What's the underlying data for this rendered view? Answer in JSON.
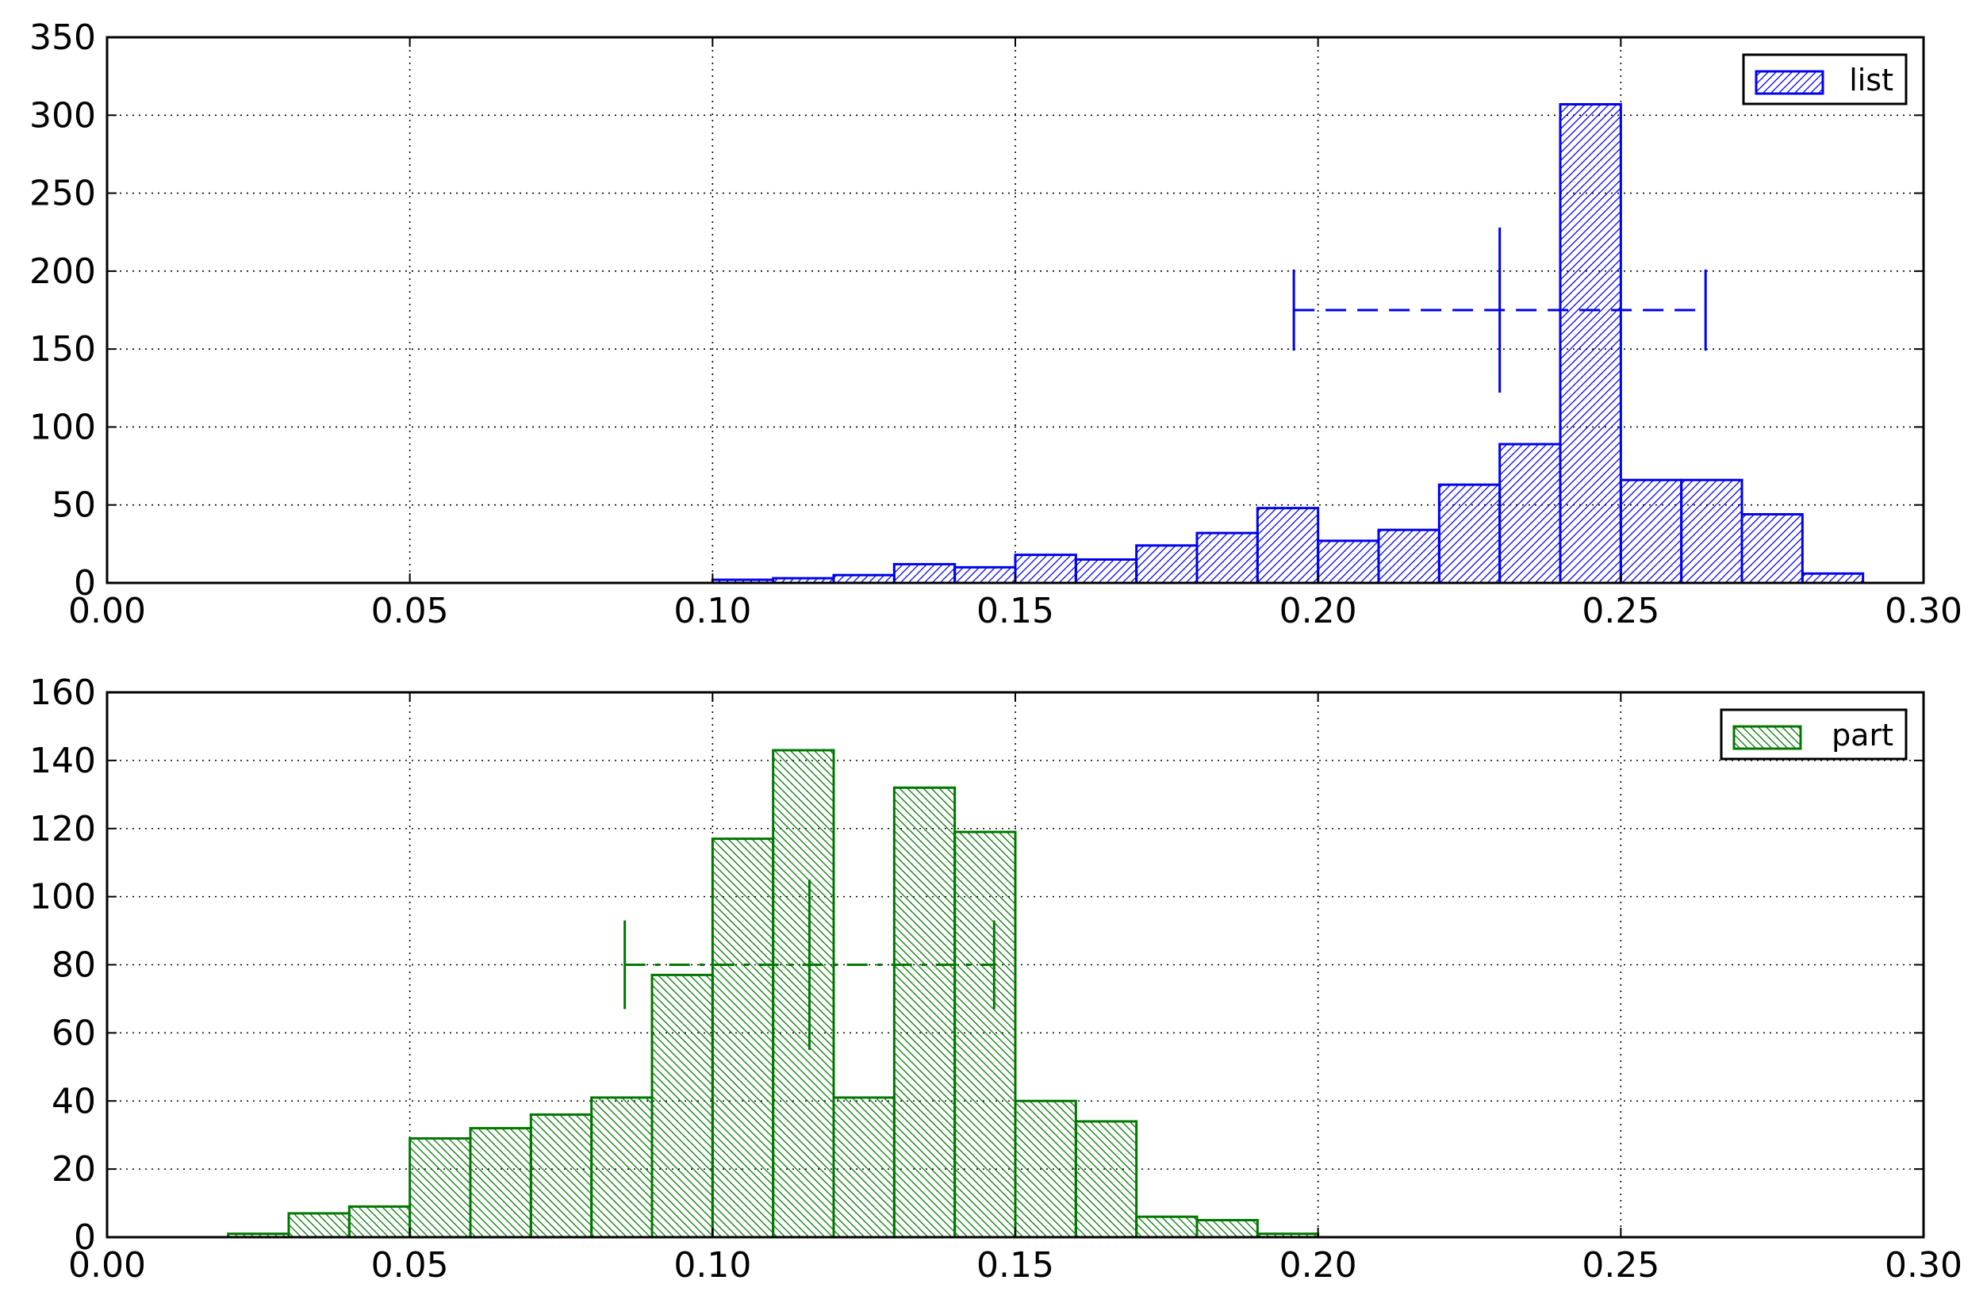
{
  "chart_data": [
    {
      "type": "bar",
      "title": "",
      "xlabel": "",
      "ylabel": "",
      "xlim": [
        0.0,
        0.3
      ],
      "ylim": [
        0,
        350
      ],
      "grid": true,
      "grid_style": "dotted",
      "legend_position": "top-right",
      "x_ticks": [
        "0.00",
        "0.05",
        "0.10",
        "0.15",
        "0.20",
        "0.25",
        "0.30"
      ],
      "y_ticks": [
        "0",
        "50",
        "100",
        "150",
        "200",
        "250",
        "300",
        "350"
      ],
      "series": [
        {
          "name": "list",
          "color": "#0000ee",
          "hatch": "forward-diagonal",
          "bin_edges": [
            0.1,
            0.11,
            0.12,
            0.13,
            0.14,
            0.15,
            0.16,
            0.17,
            0.18,
            0.19,
            0.2,
            0.21,
            0.22,
            0.23,
            0.24,
            0.25,
            0.26,
            0.27,
            0.28,
            0.29
          ],
          "values": [
            2,
            3,
            5,
            12,
            10,
            18,
            15,
            24,
            32,
            48,
            27,
            34,
            63,
            89,
            307,
            66,
            66,
            44,
            6
          ]
        }
      ],
      "errorbar": {
        "y": 175,
        "x_left": 0.196,
        "x_center": 0.23,
        "x_right": 0.264,
        "center_marker_range": [
          122,
          228
        ],
        "end_marker_range": [
          149,
          201
        ],
        "style": "dashed",
        "color": "#0000ee"
      }
    },
    {
      "type": "bar",
      "title": "",
      "xlabel": "",
      "ylabel": "",
      "xlim": [
        0.0,
        0.3
      ],
      "ylim": [
        0,
        160
      ],
      "grid": true,
      "grid_style": "dotted",
      "legend_position": "top-right",
      "x_ticks": [
        "0.00",
        "0.05",
        "0.10",
        "0.15",
        "0.20",
        "0.25",
        "0.30"
      ],
      "y_ticks": [
        "0",
        "20",
        "40",
        "60",
        "80",
        "100",
        "120",
        "140",
        "160"
      ],
      "series": [
        {
          "name": "part",
          "color": "#007700",
          "hatch": "back-diagonal",
          "bin_edges": [
            0.02,
            0.03,
            0.04,
            0.05,
            0.06,
            0.07,
            0.08,
            0.09,
            0.1,
            0.11,
            0.12,
            0.13,
            0.14,
            0.15,
            0.16,
            0.17,
            0.18,
            0.19,
            0.2
          ],
          "values": [
            1,
            7,
            9,
            29,
            32,
            36,
            41,
            77,
            117,
            143,
            41,
            132,
            119,
            40,
            34,
            6,
            5,
            1
          ]
        }
      ],
      "errorbar": {
        "y": 80,
        "x_left": 0.0855,
        "x_center": 0.116,
        "x_right": 0.1465,
        "center_marker_range": [
          55,
          105
        ],
        "end_marker_range": [
          67,
          93
        ],
        "style": "dash-dot",
        "color": "#007700"
      }
    }
  ]
}
